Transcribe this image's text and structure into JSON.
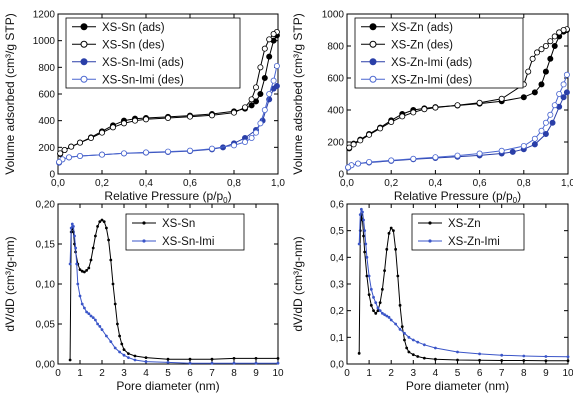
{
  "chart_data": [
    {
      "type": "line",
      "xlabel": "Relative Pressure (p/p",
      "xlabel_sub": "0",
      "xlabel_end": ")",
      "ylabel": "Volume adsorbed (cm³/g STP)",
      "xlim": [
        0,
        1.0
      ],
      "ylim": [
        0,
        1200
      ],
      "xticks": [
        0,
        0.2,
        0.4,
        0.6,
        0.8,
        1.0
      ],
      "xtick_labels": [
        "0,0",
        "0,2",
        "0,4",
        "0,6",
        "0,8",
        "1,0"
      ],
      "yticks": [
        0,
        200,
        400,
        600,
        800,
        1000,
        1200
      ],
      "ytick_labels": [
        "0",
        "200",
        "400",
        "600",
        "800",
        "1000",
        "1200"
      ],
      "legend_position": "top-left",
      "series": [
        {
          "name": "XS-Sn (ads)",
          "color": "#000000",
          "marker": "filled-circle",
          "x": [
            0.01,
            0.03,
            0.06,
            0.1,
            0.15,
            0.2,
            0.25,
            0.3,
            0.35,
            0.4,
            0.5,
            0.6,
            0.7,
            0.8,
            0.85,
            0.88,
            0.9,
            0.92,
            0.94,
            0.96,
            0.98,
            0.995
          ],
          "y": [
            150,
            180,
            205,
            235,
            275,
            320,
            365,
            400,
            415,
            420,
            428,
            438,
            450,
            470,
            490,
            515,
            545,
            600,
            720,
            880,
            1000,
            1040
          ]
        },
        {
          "name": "XS-Sn (des)",
          "color": "#000000",
          "marker": "open-circle",
          "x": [
            0.995,
            0.98,
            0.96,
            0.94,
            0.92,
            0.9,
            0.88,
            0.85,
            0.8,
            0.7,
            0.6,
            0.5,
            0.4,
            0.35,
            0.3,
            0.25,
            0.2,
            0.15,
            0.1,
            0.06,
            0.03,
            0.01
          ],
          "y": [
            1065,
            1050,
            1010,
            940,
            800,
            650,
            560,
            500,
            460,
            440,
            430,
            420,
            410,
            400,
            380,
            350,
            310,
            270,
            235,
            205,
            180,
            155
          ]
        },
        {
          "name": "XS-Sn-Imi (ads)",
          "color": "#2a3fa8",
          "marker": "filled-circle",
          "x": [
            0.005,
            0.02,
            0.05,
            0.1,
            0.2,
            0.3,
            0.4,
            0.5,
            0.6,
            0.7,
            0.75,
            0.8,
            0.85,
            0.9,
            0.93,
            0.96,
            0.98,
            0.995
          ],
          "y": [
            85,
            110,
            125,
            135,
            145,
            155,
            160,
            165,
            172,
            185,
            200,
            230,
            270,
            330,
            400,
            560,
            640,
            660
          ]
        },
        {
          "name": "XS-Sn-Imi (des)",
          "color": "#4a66d0",
          "marker": "open-circle",
          "x": [
            0.995,
            0.98,
            0.96,
            0.94,
            0.92,
            0.9,
            0.88,
            0.85,
            0.8,
            0.7,
            0.6,
            0.5,
            0.4,
            0.3,
            0.2,
            0.1,
            0.05,
            0.02,
            0.005
          ],
          "y": [
            810,
            700,
            600,
            480,
            380,
            310,
            270,
            240,
            215,
            190,
            175,
            168,
            162,
            155,
            145,
            135,
            125,
            110,
            90
          ]
        }
      ]
    },
    {
      "type": "line",
      "xlabel": "Relative Pressure (p/p",
      "xlabel_sub": "0",
      "xlabel_end": ")",
      "ylabel": "Volume adsorbed (cm³/g STP)",
      "xlim": [
        0,
        1.0
      ],
      "ylim": [
        0,
        1000
      ],
      "xticks": [
        0,
        0.2,
        0.4,
        0.6,
        0.8,
        1.0
      ],
      "xtick_labels": [
        "0,0",
        "0,2",
        "0,4",
        "0,6",
        "0,8",
        "1,0"
      ],
      "yticks": [
        0,
        200,
        400,
        600,
        800,
        1000
      ],
      "ytick_labels": [
        "0",
        "200",
        "400",
        "600",
        "800",
        "1000"
      ],
      "legend_position": "top-left",
      "series": [
        {
          "name": "XS-Zn (ads)",
          "color": "#000000",
          "marker": "filled-circle",
          "x": [
            0.01,
            0.03,
            0.06,
            0.1,
            0.15,
            0.2,
            0.25,
            0.3,
            0.35,
            0.4,
            0.5,
            0.6,
            0.7,
            0.8,
            0.85,
            0.88,
            0.9,
            0.92,
            0.94,
            0.96,
            0.98,
            0.995
          ],
          "y": [
            160,
            190,
            215,
            250,
            290,
            335,
            375,
            400,
            410,
            418,
            428,
            440,
            455,
            480,
            510,
            560,
            640,
            720,
            800,
            860,
            890,
            900
          ]
        },
        {
          "name": "XS-Zn (des)",
          "color": "#000000",
          "marker": "open-circle",
          "x": [
            0.995,
            0.98,
            0.96,
            0.94,
            0.92,
            0.9,
            0.88,
            0.86,
            0.84,
            0.82,
            0.8,
            0.7,
            0.6,
            0.5,
            0.4,
            0.35,
            0.3,
            0.25,
            0.2,
            0.15,
            0.1,
            0.06,
            0.03,
            0.01
          ],
          "y": [
            905,
            900,
            885,
            860,
            830,
            800,
            780,
            760,
            720,
            640,
            560,
            470,
            445,
            430,
            415,
            405,
            385,
            360,
            325,
            285,
            245,
            210,
            185,
            165
          ]
        },
        {
          "name": "XS-Zn-Imi (ads)",
          "color": "#2a3fa8",
          "marker": "filled-circle",
          "x": [
            0.005,
            0.02,
            0.05,
            0.1,
            0.2,
            0.3,
            0.4,
            0.5,
            0.6,
            0.7,
            0.75,
            0.8,
            0.85,
            0.9,
            0.93,
            0.96,
            0.98,
            0.995
          ],
          "y": [
            40,
            55,
            65,
            72,
            82,
            92,
            100,
            108,
            116,
            128,
            138,
            155,
            185,
            250,
            320,
            420,
            480,
            510
          ]
        },
        {
          "name": "XS-Zn-Imi (des)",
          "color": "#4a66d0",
          "marker": "open-circle",
          "x": [
            0.995,
            0.98,
            0.96,
            0.94,
            0.92,
            0.9,
            0.88,
            0.85,
            0.8,
            0.7,
            0.6,
            0.5,
            0.4,
            0.3,
            0.2,
            0.1,
            0.05,
            0.02,
            0.005
          ],
          "y": [
            620,
            560,
            500,
            430,
            370,
            320,
            270,
            220,
            175,
            145,
            128,
            115,
            105,
            95,
            85,
            75,
            65,
            55,
            42
          ]
        }
      ]
    },
    {
      "type": "line",
      "xlabel": "Pore diameter (nm)",
      "ylabel": "dV/dD (cm³/g-nm)",
      "xlim": [
        0,
        10
      ],
      "ylim": [
        0,
        0.2
      ],
      "xticks": [
        0,
        1,
        2,
        3,
        4,
        5,
        6,
        7,
        8,
        9,
        10
      ],
      "xtick_labels": [
        "0",
        "1",
        "2",
        "3",
        "4",
        "5",
        "6",
        "7",
        "8",
        "9",
        "10"
      ],
      "yticks": [
        0,
        0.05,
        0.1,
        0.15,
        0.2
      ],
      "ytick_labels": [
        "0,00",
        "0,05",
        "0,10",
        "0,15",
        "0,20"
      ],
      "legend_position": "top-right",
      "series": [
        {
          "name": "XS-Sn",
          "color": "#000000",
          "marker": "dot",
          "x": [
            0.55,
            0.6,
            0.65,
            0.7,
            0.75,
            0.8,
            0.9,
            1.0,
            1.1,
            1.2,
            1.3,
            1.4,
            1.5,
            1.6,
            1.7,
            1.8,
            1.9,
            2.0,
            2.1,
            2.2,
            2.3,
            2.4,
            2.5,
            2.6,
            2.7,
            2.8,
            2.9,
            3.0,
            3.2,
            3.5,
            4.0,
            5.0,
            6.0,
            7.0,
            8.0,
            9.0,
            10.0
          ],
          "y": [
            0.005,
            0.165,
            0.17,
            0.165,
            0.15,
            0.14,
            0.125,
            0.118,
            0.116,
            0.115,
            0.117,
            0.12,
            0.13,
            0.145,
            0.16,
            0.172,
            0.178,
            0.18,
            0.178,
            0.17,
            0.155,
            0.13,
            0.1,
            0.075,
            0.05,
            0.035,
            0.025,
            0.018,
            0.013,
            0.01,
            0.008,
            0.006,
            0.006,
            0.006,
            0.007,
            0.007,
            0.007
          ]
        },
        {
          "name": "XS-Sn-Imi",
          "color": "#3a55c8",
          "marker": "dot",
          "x": [
            0.55,
            0.6,
            0.65,
            0.7,
            0.75,
            0.8,
            0.85,
            0.9,
            1.0,
            1.1,
            1.2,
            1.3,
            1.4,
            1.5,
            1.6,
            1.7,
            1.8,
            1.9,
            2.0,
            2.2,
            2.4,
            2.6,
            2.8,
            3.0,
            3.2,
            3.5,
            4.0,
            5.0,
            6.0,
            7.0,
            8.0,
            9.0,
            10.0
          ],
          "y": [
            0.125,
            0.17,
            0.175,
            0.172,
            0.16,
            0.145,
            0.125,
            0.1,
            0.085,
            0.075,
            0.07,
            0.065,
            0.063,
            0.06,
            0.058,
            0.055,
            0.05,
            0.047,
            0.043,
            0.035,
            0.028,
            0.02,
            0.015,
            0.011,
            0.008,
            0.005,
            0.003,
            0.002,
            0.001,
            0.001,
            0.001,
            0.001,
            0.001
          ]
        }
      ]
    },
    {
      "type": "line",
      "xlabel": "Pore diameter (nm)",
      "ylabel": "dV/dD (cm³/g-nm)",
      "xlim": [
        0,
        10
      ],
      "ylim": [
        0,
        0.6
      ],
      "xticks": [
        0,
        1,
        2,
        3,
        4,
        5,
        6,
        7,
        8,
        9,
        10
      ],
      "xtick_labels": [
        "0",
        "1",
        "2",
        "3",
        "4",
        "5",
        "6",
        "7",
        "8",
        "9",
        "10"
      ],
      "yticks": [
        0,
        0.1,
        0.2,
        0.3,
        0.4,
        0.5,
        0.6
      ],
      "ytick_labels": [
        "0,0",
        "0,1",
        "0,2",
        "0,3",
        "0,4",
        "0,5",
        "0,6"
      ],
      "legend_position": "top-right",
      "series": [
        {
          "name": "XS-Zn",
          "color": "#000000",
          "marker": "dot",
          "x": [
            0.55,
            0.6,
            0.65,
            0.7,
            0.75,
            0.8,
            0.9,
            1.0,
            1.1,
            1.2,
            1.3,
            1.4,
            1.5,
            1.6,
            1.7,
            1.8,
            1.9,
            2.0,
            2.1,
            2.2,
            2.3,
            2.4,
            2.5,
            2.6,
            2.7,
            2.8,
            3.0,
            3.2,
            3.5,
            4.0,
            5.0,
            6.0,
            7.0,
            8.0,
            9.0,
            10.0
          ],
          "y": [
            0.04,
            0.5,
            0.56,
            0.54,
            0.48,
            0.42,
            0.33,
            0.26,
            0.22,
            0.2,
            0.19,
            0.2,
            0.23,
            0.28,
            0.35,
            0.43,
            0.49,
            0.51,
            0.5,
            0.43,
            0.33,
            0.22,
            0.14,
            0.09,
            0.06,
            0.045,
            0.035,
            0.028,
            0.022,
            0.018,
            0.015,
            0.014,
            0.013,
            0.013,
            0.012,
            0.012
          ]
        },
        {
          "name": "XS-Zn-Imi",
          "color": "#3a55c8",
          "marker": "dot",
          "x": [
            0.55,
            0.6,
            0.65,
            0.7,
            0.75,
            0.8,
            0.85,
            0.9,
            1.0,
            1.1,
            1.2,
            1.3,
            1.4,
            1.5,
            1.6,
            1.7,
            1.8,
            1.9,
            2.0,
            2.2,
            2.4,
            2.6,
            2.8,
            3.0,
            3.2,
            3.5,
            4.0,
            5.0,
            6.0,
            7.0,
            8.0,
            9.0,
            10.0
          ],
          "y": [
            0.45,
            0.56,
            0.58,
            0.57,
            0.54,
            0.5,
            0.45,
            0.4,
            0.33,
            0.28,
            0.25,
            0.23,
            0.21,
            0.2,
            0.19,
            0.185,
            0.18,
            0.175,
            0.165,
            0.15,
            0.13,
            0.115,
            0.1,
            0.09,
            0.082,
            0.072,
            0.06,
            0.045,
            0.038,
            0.033,
            0.03,
            0.028,
            0.027
          ]
        }
      ]
    }
  ]
}
